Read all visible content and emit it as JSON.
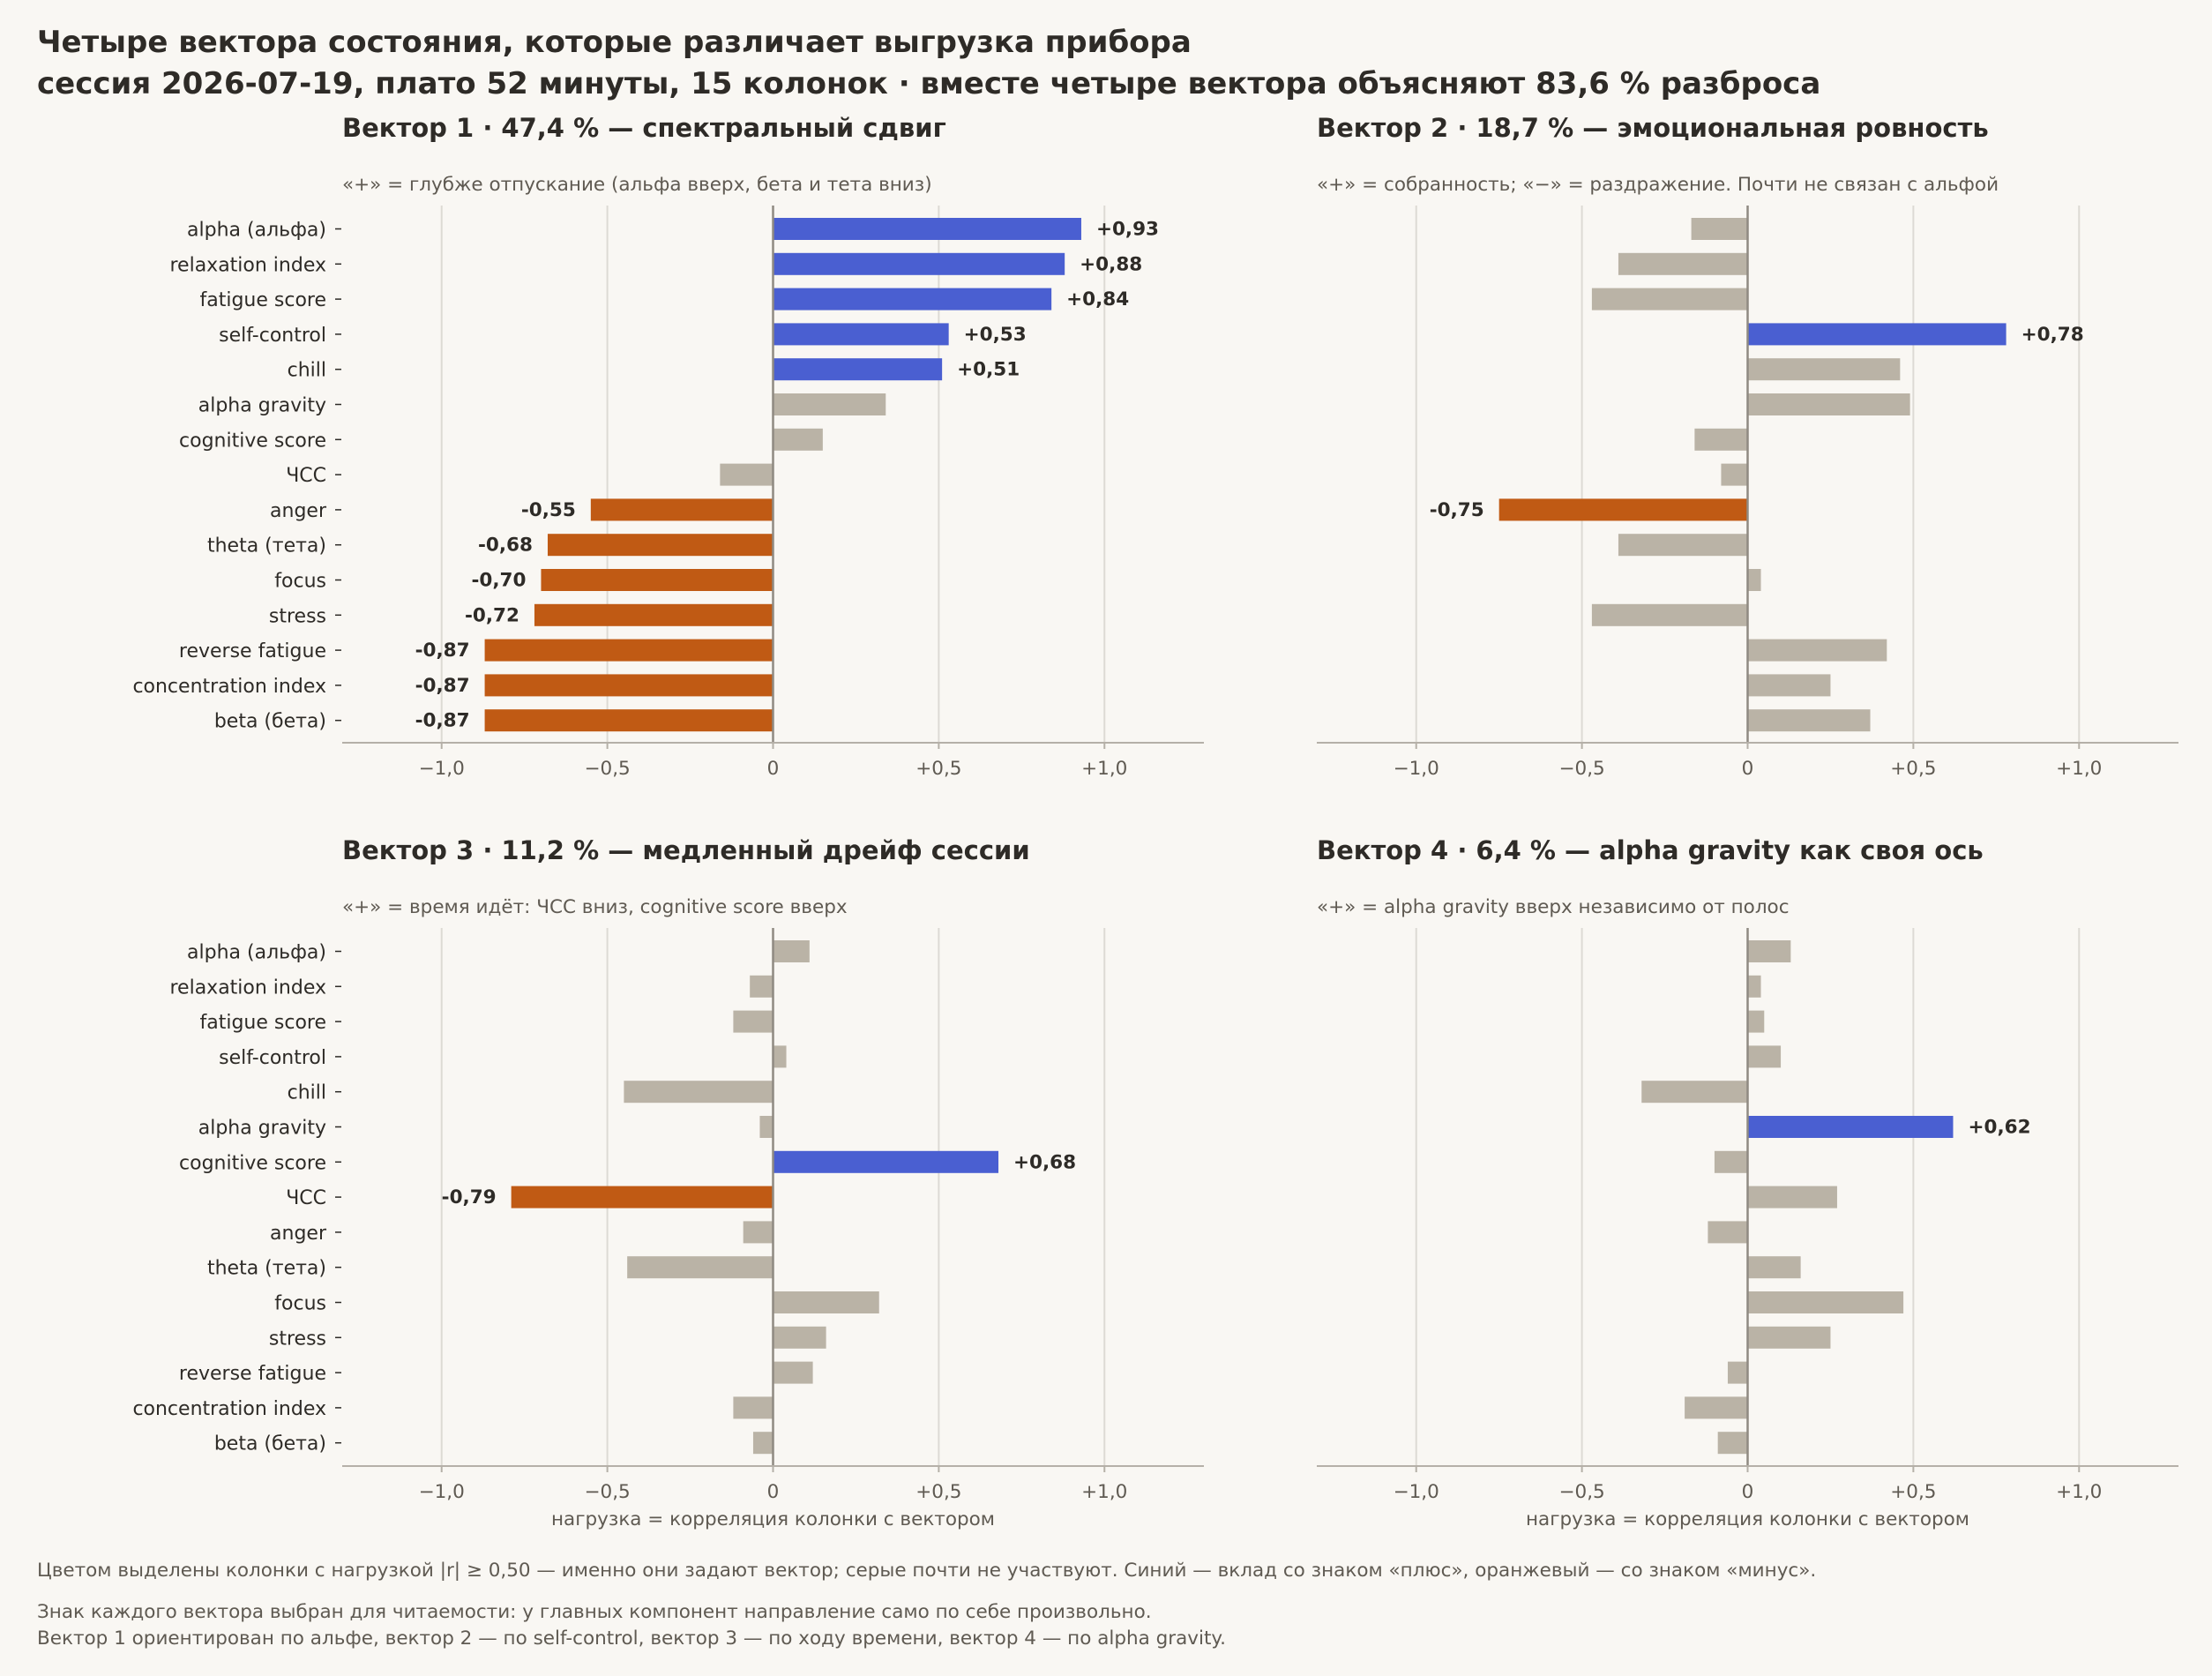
{
  "figure": {
    "title_line1": "Четыре вектора состояния, которые различает выгрузка прибора",
    "title_line2": "сессия 2026-07-19, плато 52 минуты, 15 колонок · вместе четыре вектора объясняют 83,6 % разброса",
    "footnote1": "Цветом выделены колонки с нагрузкой |r| ≥ 0,50 — именно они задают вектор; серые почти не участвуют. Синий — вклад со знаком «плюс», оранжевый — со знаком «минус».",
    "footnote2": "Знак каждого вектора выбран для читаемости: у главных компонент направление само по себе произвольно.",
    "footnote3": "Вектор 1 ориентирован по альфе, вектор 2 — по self-control, вектор 3 — по ходу времени, вектор 4 — по alpha gravity."
  },
  "colors": {
    "positive": "#4a5fd1",
    "negative": "#c05a14",
    "neutral": "#bab3a6",
    "grid": "#dddad4",
    "zero_line": "#8f8a82",
    "axis": "#b5b0a8"
  },
  "chart_data": [
    {
      "type": "bar",
      "orientation": "horizontal",
      "title": "Вектор 1 · 47,4 % — спектральный сдвиг",
      "subtitle": "«+» = глубже отпускание (альфа вверх, бета и тета вниз)",
      "xlabel": "",
      "xlim": [
        -1.3,
        1.3
      ],
      "xticks": [
        -1.0,
        -0.5,
        0,
        0.5,
        1.0
      ],
      "xtick_labels": [
        "−1,0",
        "−0,5",
        "0",
        "+0,5",
        "+1,0"
      ],
      "threshold": 0.5,
      "categories": [
        "alpha (альфа)",
        "relaxation index",
        "fatigue score",
        "self-control",
        "chill",
        "alpha gravity",
        "cognitive score",
        "ЧСС",
        "anger",
        "theta (тета)",
        "focus",
        "stress",
        "reverse fatigue",
        "concentration index",
        "beta (бета)"
      ],
      "values": [
        0.93,
        0.88,
        0.84,
        0.53,
        0.51,
        0.34,
        0.15,
        -0.16,
        -0.55,
        -0.68,
        -0.7,
        -0.72,
        -0.87,
        -0.87,
        -0.87
      ],
      "value_labels": [
        "+0,93",
        "+0,88",
        "+0,84",
        "+0,53",
        "+0,51",
        "",
        "",
        "",
        "-0,55",
        "-0,68",
        "-0,70",
        "-0,72",
        "-0,87",
        "-0,87",
        "-0,87"
      ]
    },
    {
      "type": "bar",
      "orientation": "horizontal",
      "title": "Вектор 2 · 18,7 % — эмоциональная ровность",
      "subtitle": "«+» = собранность; «−» = раздражение. Почти не связан с альфой",
      "xlabel": "",
      "xlim": [
        -1.3,
        1.3
      ],
      "xticks": [
        -1.0,
        -0.5,
        0,
        0.5,
        1.0
      ],
      "xtick_labels": [
        "−1,0",
        "−0,5",
        "0",
        "+0,5",
        "+1,0"
      ],
      "threshold": 0.5,
      "categories": [
        "alpha (альфа)",
        "relaxation index",
        "fatigue score",
        "self-control",
        "chill",
        "alpha gravity",
        "cognitive score",
        "ЧСС",
        "anger",
        "theta (тета)",
        "focus",
        "stress",
        "reverse fatigue",
        "concentration index",
        "beta (бета)"
      ],
      "values": [
        -0.17,
        -0.39,
        -0.47,
        0.78,
        0.46,
        0.49,
        -0.16,
        -0.08,
        -0.75,
        -0.39,
        0.04,
        -0.47,
        0.42,
        0.25,
        0.37
      ],
      "value_labels": [
        "",
        "",
        "",
        "+0,78",
        "",
        "",
        "",
        "",
        "-0,75",
        "",
        "",
        "",
        "",
        "",
        ""
      ]
    },
    {
      "type": "bar",
      "orientation": "horizontal",
      "title": "Вектор 3 · 11,2 % — медленный дрейф сессии",
      "subtitle": "«+» = время идёт: ЧСС вниз, cognitive score вверх",
      "xlabel": "нагрузка = корреляция колонки с вектором",
      "xlim": [
        -1.3,
        1.3
      ],
      "xticks": [
        -1.0,
        -0.5,
        0,
        0.5,
        1.0
      ],
      "xtick_labels": [
        "−1,0",
        "−0,5",
        "0",
        "+0,5",
        "+1,0"
      ],
      "threshold": 0.5,
      "categories": [
        "alpha (альфа)",
        "relaxation index",
        "fatigue score",
        "self-control",
        "chill",
        "alpha gravity",
        "cognitive score",
        "ЧСС",
        "anger",
        "theta (тета)",
        "focus",
        "stress",
        "reverse fatigue",
        "concentration index",
        "beta (бета)"
      ],
      "values": [
        0.11,
        -0.07,
        -0.12,
        0.04,
        -0.45,
        -0.04,
        0.68,
        -0.79,
        -0.09,
        -0.44,
        0.32,
        0.16,
        0.12,
        -0.12,
        -0.06
      ],
      "value_labels": [
        "",
        "",
        "",
        "",
        "",
        "",
        "+0,68",
        "-0,79",
        "",
        "",
        "",
        "",
        "",
        "",
        ""
      ]
    },
    {
      "type": "bar",
      "orientation": "horizontal",
      "title": "Вектор 4 · 6,4 % — alpha gravity как своя ось",
      "subtitle": "«+» = alpha gravity вверх независимо от полос",
      "xlabel": "нагрузка = корреляция колонки с вектором",
      "xlim": [
        -1.3,
        1.3
      ],
      "xticks": [
        -1.0,
        -0.5,
        0,
        0.5,
        1.0
      ],
      "xtick_labels": [
        "−1,0",
        "−0,5",
        "0",
        "+0,5",
        "+1,0"
      ],
      "threshold": 0.5,
      "categories": [
        "alpha (альфа)",
        "relaxation index",
        "fatigue score",
        "self-control",
        "chill",
        "alpha gravity",
        "cognitive score",
        "ЧСС",
        "anger",
        "theta (тета)",
        "focus",
        "stress",
        "reverse fatigue",
        "concentration index",
        "beta (бета)"
      ],
      "values": [
        0.13,
        0.04,
        0.05,
        0.1,
        -0.32,
        0.62,
        -0.1,
        0.27,
        -0.12,
        0.16,
        0.47,
        0.25,
        -0.06,
        -0.19,
        -0.09
      ],
      "value_labels": [
        "",
        "",
        "",
        "",
        "",
        "+0,62",
        "",
        "",
        "",
        "",
        "",
        "",
        "",
        "",
        ""
      ]
    }
  ]
}
